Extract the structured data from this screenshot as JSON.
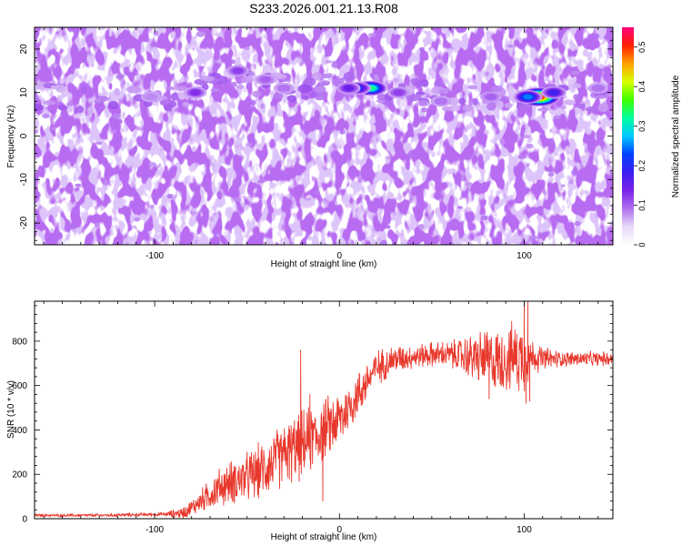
{
  "figure_title": "S233.2026.001.21.13.R08",
  "chart_data": [
    {
      "type": "heatmap",
      "title": "S233.2026.001.21.13.R08",
      "xlabel": "Height of straight line (km)",
      "ylabel": "Frequency (Hz)",
      "xlim": [
        -165,
        148
      ],
      "ylim": [
        -25,
        25
      ],
      "xticks": [
        -100,
        0,
        100
      ],
      "yticks": [
        -20,
        -10,
        0,
        10,
        20
      ],
      "colorbar": {
        "label": "Normalized spectral amplitude",
        "range": [
          0,
          0.55
        ],
        "ticks": [
          0,
          0.1,
          0.2,
          0.3,
          0.4,
          0.5
        ],
        "colormap": [
          "#ffffff",
          "#e8d8f8",
          "#b070f0",
          "#7a20e8",
          "#3a20f0",
          "#0040ff",
          "#00c8ff",
          "#00ffa0",
          "#40ff00",
          "#d8ff00",
          "#ffa000",
          "#ff2000",
          "#ff0080"
        ]
      },
      "background_level": 0.04,
      "ridge": [
        [
          -165,
          9
        ],
        [
          -130,
          8
        ],
        [
          -100,
          8.5
        ],
        [
          -80,
          10
        ],
        [
          -60,
          12
        ],
        [
          -40,
          12
        ],
        [
          -20,
          11
        ],
        [
          0,
          11
        ],
        [
          20,
          11
        ],
        [
          40,
          10
        ],
        [
          60,
          9
        ],
        [
          80,
          9
        ],
        [
          100,
          9
        ],
        [
          120,
          9
        ],
        [
          148,
          8
        ]
      ],
      "hotspots": [
        {
          "x": 108,
          "y": 9,
          "value": 0.53
        },
        {
          "x": 102,
          "y": 9,
          "value": 0.25
        },
        {
          "x": 116,
          "y": 10,
          "value": 0.18
        },
        {
          "x": 17,
          "y": 11,
          "value": 0.33
        },
        {
          "x": 10,
          "y": 11,
          "value": 0.2
        },
        {
          "x": 5,
          "y": 11,
          "value": 0.15
        },
        {
          "x": -78,
          "y": 10,
          "value": 0.13
        },
        {
          "x": -55,
          "y": 15,
          "value": 0.12
        },
        {
          "x": 32,
          "y": 10,
          "value": 0.12
        },
        {
          "x": 82,
          "y": 9,
          "value": 0.1
        },
        {
          "x": -40,
          "y": 13,
          "value": 0.1
        },
        {
          "x": 55,
          "y": 8,
          "value": 0.09
        },
        {
          "x": -30,
          "y": 11,
          "value": 0.09
        },
        {
          "x": 140,
          "y": 11,
          "value": 0.09
        },
        {
          "x": -102,
          "y": 9,
          "value": 0.08
        }
      ]
    },
    {
      "type": "line",
      "xlabel": "Height of straight line (km)",
      "ylabel": "SNR (10 * v/v)",
      "xlim": [
        -165,
        148
      ],
      "ylim": [
        0,
        980
      ],
      "xticks": [
        -100,
        0,
        100
      ],
      "yticks": [
        0,
        200,
        400,
        600,
        800
      ],
      "color": "#e8382c",
      "series": [
        {
          "name": "SNR",
          "x": [
            -165,
            -150,
            -130,
            -110,
            -95,
            -85,
            -80,
            -75,
            -70,
            -65,
            -60,
            -55,
            -50,
            -45,
            -40,
            -35,
            -30,
            -25,
            -20,
            -15,
            -10,
            -5,
            0,
            5,
            10,
            15,
            20,
            25,
            30,
            40,
            50,
            60,
            70,
            80,
            85,
            90,
            95,
            100,
            105,
            110,
            120,
            130,
            140,
            148
          ],
          "values": [
            15,
            15,
            15,
            18,
            20,
            25,
            50,
            80,
            110,
            140,
            160,
            175,
            185,
            205,
            230,
            260,
            290,
            310,
            330,
            360,
            390,
            420,
            450,
            500,
            560,
            620,
            680,
            700,
            720,
            730,
            740,
            740,
            730,
            720,
            710,
            720,
            730,
            730,
            730,
            720,
            720,
            720,
            720,
            720
          ]
        }
      ],
      "noise_amplitude": {
        "x": [
          -165,
          -95,
          -80,
          -65,
          -40,
          -20,
          0,
          20,
          40,
          60,
          78,
          100,
          105,
          120,
          148
        ],
        "values": [
          8,
          10,
          40,
          100,
          150,
          180,
          150,
          90,
          60,
          70,
          150,
          190,
          80,
          40,
          35
        ]
      },
      "spikes": [
        {
          "x": -21,
          "y": 760
        },
        {
          "x": -16,
          "y": 560
        },
        {
          "x": -9,
          "y": 80
        },
        {
          "x": 80,
          "y": 840
        },
        {
          "x": 81,
          "y": 540
        },
        {
          "x": 100,
          "y": 980
        },
        {
          "x": 101,
          "y": 520
        },
        {
          "x": 102,
          "y": 980
        },
        {
          "x": 103,
          "y": 530
        }
      ]
    }
  ]
}
